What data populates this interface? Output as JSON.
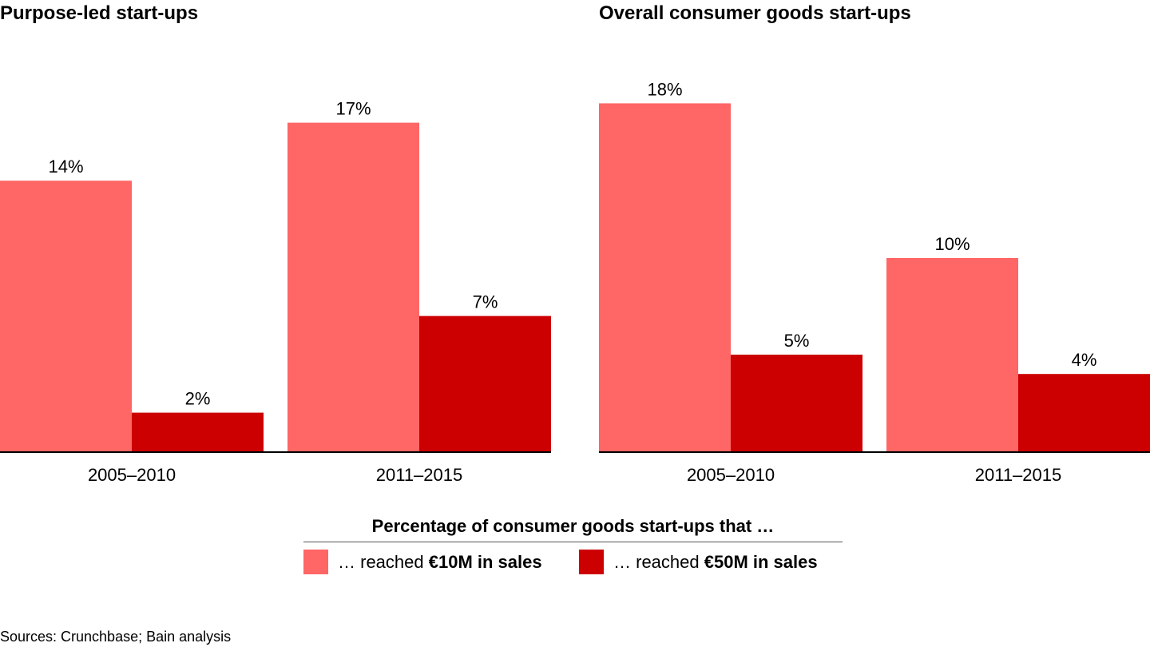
{
  "panels": [
    {
      "title": "Purpose-led start-ups"
    },
    {
      "title": "Overall consumer goods start-ups"
    }
  ],
  "legend": {
    "title": "Percentage of consumer goods start-ups that …",
    "items": [
      {
        "prefix": "… reached ",
        "bold": "€10M in sales",
        "color": "#ff6666"
      },
      {
        "prefix": "… reached ",
        "bold": "€50M in sales",
        "color": "#cc0000"
      }
    ]
  },
  "source": "Sources: Crunchbase; Bain analysis",
  "chart_data": [
    {
      "type": "bar",
      "title": "Purpose-led start-ups",
      "categories": [
        "2005–2010",
        "2011–2015"
      ],
      "series": [
        {
          "name": "… reached €10M in sales",
          "values": [
            14,
            17
          ],
          "labels": [
            "14%",
            "17%"
          ],
          "color": "#ff6666"
        },
        {
          "name": "… reached €50M in sales",
          "values": [
            2,
            7
          ],
          "labels": [
            "2%",
            "7%"
          ],
          "color": "#cc0000"
        }
      ],
      "ylim": [
        0,
        18
      ]
    },
    {
      "type": "bar",
      "title": "Overall consumer goods start-ups",
      "categories": [
        "2005–2010",
        "2011–2015"
      ],
      "series": [
        {
          "name": "… reached €10M in sales",
          "values": [
            18,
            10
          ],
          "labels": [
            "18%",
            "10%"
          ],
          "color": "#ff6666"
        },
        {
          "name": "… reached €50M in sales",
          "values": [
            5,
            4
          ],
          "labels": [
            "5%",
            "4%"
          ],
          "color": "#cc0000"
        }
      ],
      "ylim": [
        0,
        18
      ]
    }
  ]
}
